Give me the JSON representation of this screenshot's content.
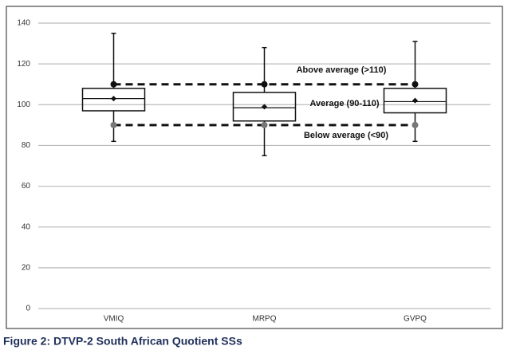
{
  "chart_data": {
    "type": "box",
    "caption": "Figure 2: DTVP-2 South African Quotient SSs",
    "categories": [
      "VMIQ",
      "MRPQ",
      "GVPQ"
    ],
    "boxes": [
      {
        "min": 82,
        "q1": 97,
        "median": 103,
        "q3": 108,
        "max": 135,
        "mean": 103
      },
      {
        "min": 75,
        "q1": 92,
        "median": 98.5,
        "q3": 106,
        "max": 128,
        "mean": 99
      },
      {
        "min": 82,
        "q1": 96,
        "median": 101.5,
        "q3": 108,
        "max": 131,
        "mean": 102
      }
    ],
    "reference_lines": [
      {
        "value": 110,
        "dot_color": "#111111"
      },
      {
        "value": 90,
        "dot_color": "#777777"
      }
    ],
    "annotations": [
      "Above average (>110)",
      "Average (90-110)",
      "Below average (<90)"
    ],
    "ylim": [
      0,
      140
    ],
    "yticks": [
      0,
      20,
      40,
      60,
      80,
      100,
      120,
      140
    ],
    "grid": true,
    "box_color": "#111111",
    "grid_color": "#bbbbbb"
  }
}
